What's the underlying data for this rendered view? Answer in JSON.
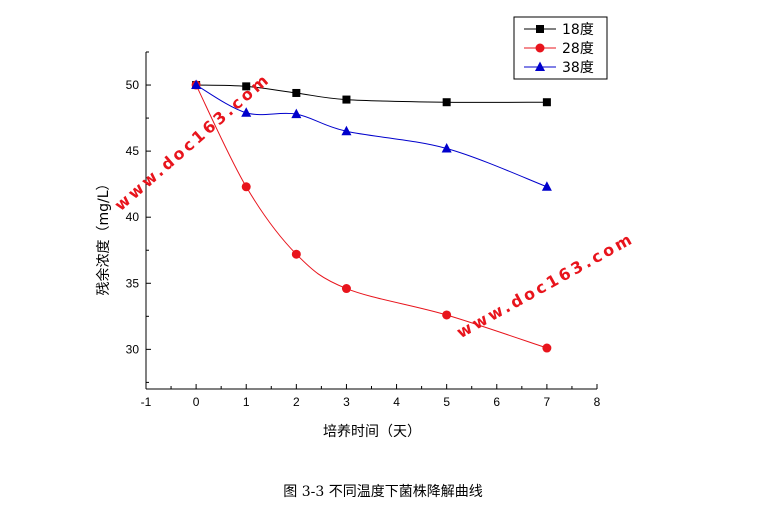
{
  "chart_data": {
    "type": "line",
    "title": "",
    "xlabel": "培养时间（天）",
    "ylabel": "残余浓度（mg/L）",
    "xlim": [
      -1,
      8
    ],
    "ylim": [
      27,
      52.5
    ],
    "xticks": [
      -1,
      0,
      1,
      2,
      3,
      4,
      5,
      6,
      7,
      8
    ],
    "yticks": [
      30,
      35,
      40,
      45,
      50
    ],
    "legend_position": "top-right",
    "grid": false,
    "series": [
      {
        "name": "18度",
        "color": "#000000",
        "marker": "square",
        "x": [
          0,
          1,
          2,
          3,
          5,
          7
        ],
        "values": [
          50.0,
          49.9,
          49.4,
          48.9,
          48.7,
          48.7
        ]
      },
      {
        "name": "28度",
        "color": "#e8141c",
        "marker": "circle",
        "x": [
          0,
          1,
          2,
          3,
          5,
          7
        ],
        "values": [
          50.0,
          42.3,
          37.2,
          34.6,
          32.6,
          30.1
        ]
      },
      {
        "name": "38度",
        "color": "#0000cc",
        "marker": "triangle",
        "x": [
          0,
          1,
          2,
          3,
          5,
          7
        ],
        "values": [
          50.0,
          47.9,
          47.8,
          46.5,
          45.2,
          42.3
        ]
      }
    ]
  },
  "caption": "图 3-3 不同温度下菌株降解曲线",
  "watermarks": [
    "www.doc163.com",
    "www.doc163.com"
  ]
}
